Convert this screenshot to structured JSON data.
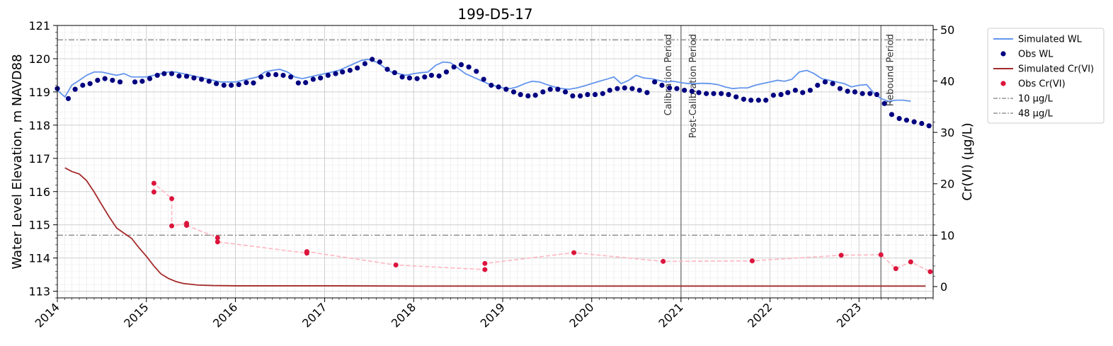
{
  "chart_data": {
    "type": "line",
    "title": "199-D5-17",
    "ylabel": "Water Level Elevation, m NAVD88",
    "y2label": "Cr(VI) (µg/L)",
    "xlim": [
      "2014-01-01",
      "2023-11-01"
    ],
    "ylim": [
      112.8,
      121
    ],
    "y2lim": [
      -2.2,
      50.8
    ],
    "x_ticks": [
      "2014",
      "2015",
      "2016",
      "2017",
      "2018",
      "2019",
      "2020",
      "2021",
      "2022",
      "2023"
    ],
    "y_ticks": [
      "113",
      "114",
      "115",
      "116",
      "117",
      "118",
      "119",
      "120",
      "121"
    ],
    "y2_ticks": [
      "0",
      "10",
      "20",
      "30",
      "40",
      "50"
    ],
    "grid": true,
    "legend_position": "outside-right",
    "colors": {
      "simulated_wl": "#6495ed",
      "obs_wl": "#000080",
      "simulated_cr": "#a52a2a",
      "obs_cr": "#dc143c",
      "obs_cr_line": "#ffb6c1",
      "threshold": "#808080",
      "period_line": "#808080"
    },
    "series": [
      {
        "name": "Simulated WL",
        "axis": "left",
        "style": "line",
        "x": [
          "2014-01-01",
          "2014-02-01",
          "2014-03-01",
          "2014-04-01",
          "2014-05-01",
          "2014-06-01",
          "2014-07-01",
          "2014-08-01",
          "2014-09-01",
          "2014-10-01",
          "2014-11-01",
          "2014-12-01",
          "2015-01-01",
          "2015-02-01",
          "2015-03-01",
          "2015-04-01",
          "2015-05-01",
          "2015-06-01",
          "2015-07-01",
          "2015-08-01",
          "2015-09-01",
          "2015-10-01",
          "2015-11-01",
          "2015-12-01",
          "2016-01-01",
          "2016-02-01",
          "2016-03-01",
          "2016-04-01",
          "2016-05-01",
          "2016-06-01",
          "2016-07-01",
          "2016-08-01",
          "2016-09-01",
          "2016-10-01",
          "2016-11-01",
          "2016-12-01",
          "2017-01-01",
          "2017-02-01",
          "2017-03-01",
          "2017-04-01",
          "2017-05-01",
          "2017-06-01",
          "2017-07-01",
          "2017-08-01",
          "2017-09-01",
          "2017-10-01",
          "2017-11-01",
          "2017-12-01",
          "2018-01-01",
          "2018-02-01",
          "2018-03-01",
          "2018-04-01",
          "2018-05-01",
          "2018-06-01",
          "2018-07-01",
          "2018-08-01",
          "2018-09-01",
          "2018-10-01",
          "2018-11-01",
          "2018-12-01",
          "2019-01-01",
          "2019-02-01",
          "2019-03-01",
          "2019-04-01",
          "2019-05-01",
          "2019-06-01",
          "2019-07-01",
          "2019-08-01",
          "2019-09-01",
          "2019-10-01",
          "2019-11-01",
          "2019-12-01",
          "2020-01-01",
          "2020-02-01",
          "2020-03-01",
          "2020-04-01",
          "2020-05-01",
          "2020-06-01",
          "2020-07-01",
          "2020-08-01",
          "2020-09-01",
          "2020-10-01",
          "2020-11-01",
          "2020-12-01",
          "2021-01-01",
          "2021-02-01",
          "2021-03-01",
          "2021-04-01",
          "2021-05-01",
          "2021-06-01",
          "2021-07-01",
          "2021-08-01",
          "2021-09-01",
          "2021-10-01",
          "2021-11-01",
          "2021-12-01",
          "2022-01-01",
          "2022-02-01",
          "2022-03-01",
          "2022-04-01",
          "2022-05-01",
          "2022-06-01",
          "2022-07-01",
          "2022-08-01",
          "2022-09-01",
          "2022-10-01",
          "2022-11-01",
          "2022-12-01",
          "2023-01-01",
          "2023-02-01",
          "2023-03-01",
          "2023-04-01",
          "2023-05-01",
          "2023-06-01",
          "2023-07-01",
          "2023-08-01"
        ],
        "y": [
          119.05,
          118.85,
          119.2,
          119.35,
          119.5,
          119.6,
          119.6,
          119.55,
          119.5,
          119.55,
          119.45,
          119.45,
          119.45,
          119.5,
          119.55,
          119.6,
          119.6,
          119.55,
          119.5,
          119.45,
          119.4,
          119.35,
          119.3,
          119.3,
          119.3,
          119.35,
          119.4,
          119.45,
          119.6,
          119.65,
          119.68,
          119.6,
          119.45,
          119.4,
          119.45,
          119.5,
          119.55,
          119.6,
          119.65,
          119.75,
          119.85,
          119.95,
          119.98,
          119.9,
          119.75,
          119.6,
          119.55,
          119.5,
          119.55,
          119.58,
          119.6,
          119.8,
          119.9,
          119.88,
          119.72,
          119.55,
          119.45,
          119.35,
          119.25,
          119.18,
          119.12,
          119.1,
          119.15,
          119.25,
          119.32,
          119.3,
          119.22,
          119.15,
          119.1,
          119.08,
          119.12,
          119.18,
          119.25,
          119.32,
          119.38,
          119.45,
          119.25,
          119.35,
          119.5,
          119.42,
          119.4,
          119.35,
          119.3,
          119.32,
          119.28,
          119.25,
          119.25,
          119.26,
          119.25,
          119.22,
          119.15,
          119.1,
          119.12,
          119.12,
          119.2,
          119.25,
          119.3,
          119.35,
          119.32,
          119.38,
          119.6,
          119.65,
          119.55,
          119.4,
          119.35,
          119.3,
          119.25,
          119.15,
          119.2,
          119.22,
          118.98,
          118.8,
          118.72,
          118.75,
          118.75,
          118.72
        ]
      },
      {
        "name": "Obs WL",
        "axis": "left",
        "style": "scatter",
        "x": [
          "2014-01-01",
          "2014-02-15",
          "2014-03-15",
          "2014-04-15",
          "2014-05-15",
          "2014-06-15",
          "2014-07-15",
          "2014-08-15",
          "2014-09-15",
          "2014-11-15",
          "2014-12-15",
          "2015-01-15",
          "2015-02-15",
          "2015-03-15",
          "2015-04-15",
          "2015-05-15",
          "2015-06-15",
          "2015-07-15",
          "2015-08-15",
          "2015-09-15",
          "2015-10-15",
          "2015-11-15",
          "2015-12-15",
          "2016-01-15",
          "2016-02-15",
          "2016-03-15",
          "2016-04-15",
          "2016-05-15",
          "2016-06-15",
          "2016-07-15",
          "2016-08-15",
          "2016-09-15",
          "2016-10-15",
          "2016-11-15",
          "2016-12-15",
          "2017-01-15",
          "2017-02-15",
          "2017-03-15",
          "2017-04-15",
          "2017-05-15",
          "2017-06-15",
          "2017-07-15",
          "2017-08-15",
          "2017-09-15",
          "2017-10-15",
          "2017-11-15",
          "2017-12-15",
          "2018-01-15",
          "2018-02-15",
          "2018-03-15",
          "2018-04-15",
          "2018-05-15",
          "2018-06-15",
          "2018-07-15",
          "2018-08-15",
          "2018-09-15",
          "2018-10-15",
          "2018-11-15",
          "2018-12-15",
          "2019-01-15",
          "2019-02-15",
          "2019-03-15",
          "2019-04-15",
          "2019-05-15",
          "2019-06-15",
          "2019-07-15",
          "2019-08-15",
          "2019-09-15",
          "2019-10-15",
          "2019-11-15",
          "2019-12-15",
          "2020-01-15",
          "2020-02-15",
          "2020-03-15",
          "2020-04-15",
          "2020-05-15",
          "2020-06-15",
          "2020-07-15",
          "2020-08-15",
          "2020-09-15",
          "2020-10-15",
          "2020-11-15",
          "2020-12-15",
          "2021-01-15",
          "2021-02-15",
          "2021-03-15",
          "2021-04-15",
          "2021-05-15",
          "2021-06-15",
          "2021-07-15",
          "2021-08-15",
          "2021-09-15",
          "2021-10-15",
          "2021-11-15",
          "2021-12-15",
          "2022-01-15",
          "2022-02-15",
          "2022-03-15",
          "2022-04-15",
          "2022-05-15",
          "2022-06-15",
          "2022-07-15",
          "2022-08-15",
          "2022-09-15",
          "2022-10-15",
          "2022-11-15",
          "2022-12-15",
          "2023-01-15",
          "2023-02-15",
          "2023-03-15",
          "2023-04-15",
          "2023-05-15",
          "2023-06-15",
          "2023-07-15",
          "2023-08-15",
          "2023-09-15",
          "2023-10-15"
        ],
        "y": [
          119.1,
          118.8,
          119.08,
          119.2,
          119.25,
          119.35,
          119.4,
          119.35,
          119.3,
          119.3,
          119.32,
          119.4,
          119.5,
          119.55,
          119.55,
          119.48,
          119.47,
          119.42,
          119.38,
          119.32,
          119.25,
          119.2,
          119.2,
          119.22,
          119.28,
          119.27,
          119.45,
          119.52,
          119.52,
          119.5,
          119.45,
          119.27,
          119.28,
          119.38,
          119.42,
          119.5,
          119.55,
          119.6,
          119.65,
          119.72,
          119.85,
          119.98,
          119.9,
          119.68,
          119.58,
          119.45,
          119.42,
          119.4,
          119.45,
          119.5,
          119.48,
          119.6,
          119.75,
          119.82,
          119.75,
          119.62,
          119.38,
          119.2,
          119.15,
          119.08,
          119.0,
          118.92,
          118.88,
          118.9,
          119.0,
          119.08,
          119.08,
          119.0,
          118.88,
          118.88,
          118.92,
          118.92,
          118.95,
          119.05,
          119.1,
          119.12,
          119.1,
          119.05,
          118.98,
          119.3,
          119.2,
          119.12,
          119.1,
          119.05,
          119.02,
          118.98,
          118.95,
          118.95,
          118.95,
          118.92,
          118.85,
          118.78,
          118.75,
          118.75,
          118.75,
          118.9,
          118.92,
          118.98,
          119.05,
          118.98,
          119.05,
          119.2,
          119.3,
          119.25,
          119.1,
          119.02,
          119.0,
          118.95,
          118.95,
          118.92,
          118.65,
          118.32,
          118.2,
          118.15,
          118.1,
          118.05,
          117.98
        ]
      },
      {
        "name": "Simulated Cr(VI)",
        "axis": "right",
        "style": "line",
        "x": [
          "2014-02-01",
          "2014-03-01",
          "2014-04-01",
          "2014-05-01",
          "2014-06-01",
          "2014-07-01",
          "2014-08-01",
          "2014-09-01",
          "2014-10-01",
          "2014-11-01",
          "2014-12-01",
          "2015-01-01",
          "2015-02-01",
          "2015-03-01",
          "2015-04-01",
          "2015-05-01",
          "2015-06-01",
          "2015-08-01",
          "2015-10-01",
          "2016-01-01",
          "2017-01-01",
          "2018-01-01",
          "2019-01-01",
          "2020-01-01",
          "2021-01-01",
          "2022-01-01",
          "2023-01-01",
          "2023-10-01"
        ],
        "y": [
          23.1,
          22.4,
          21.9,
          20.6,
          18.4,
          16.0,
          13.6,
          11.4,
          10.4,
          9.4,
          7.6,
          5.9,
          4.0,
          2.5,
          1.6,
          1.0,
          0.6,
          0.3,
          0.2,
          0.15,
          0.15,
          0.1,
          0.1,
          0.1,
          0.1,
          0.1,
          0.1,
          0.1
        ]
      },
      {
        "name": "Obs Cr(VI)",
        "axis": "right",
        "style": "scatter-dashed",
        "x": [
          "2015-02-01",
          "2015-02-01",
          "2015-04-15",
          "2015-04-15",
          "2015-06-15",
          "2015-06-15",
          "2015-10-20",
          "2015-10-20",
          "2016-10-20",
          "2016-10-20",
          "2017-10-20",
          "2018-10-20",
          "2018-10-20",
          "2019-10-20",
          "2020-10-20",
          "2021-10-20",
          "2022-10-20",
          "2023-04-01",
          "2023-06-01",
          "2023-08-01",
          "2023-10-20"
        ],
        "y": [
          18.4,
          20.1,
          17.1,
          11.8,
          12.3,
          11.9,
          9.5,
          8.7,
          6.5,
          6.8,
          4.2,
          3.3,
          4.5,
          6.6,
          4.9,
          5.0,
          6.1,
          6.2,
          3.5,
          4.8,
          2.9
        ]
      },
      {
        "name": "10 µg/L",
        "axis": "right",
        "style": "dashdot",
        "value": 10
      },
      {
        "name": "48 µg/L",
        "axis": "right",
        "style": "dashdot",
        "value": 48
      }
    ],
    "period_lines": [
      {
        "x": "2021-01-01",
        "labels": [
          "Calibration Period",
          "Post-Calibration Period"
        ]
      },
      {
        "x": "2023-04-01",
        "labels": [
          "Rebound Period"
        ]
      }
    ],
    "legend": [
      "Simulated WL",
      "Obs WL",
      "Simulated Cr(VI)",
      "Obs Cr(VI)",
      "10 µg/L",
      "48 µg/L"
    ]
  }
}
